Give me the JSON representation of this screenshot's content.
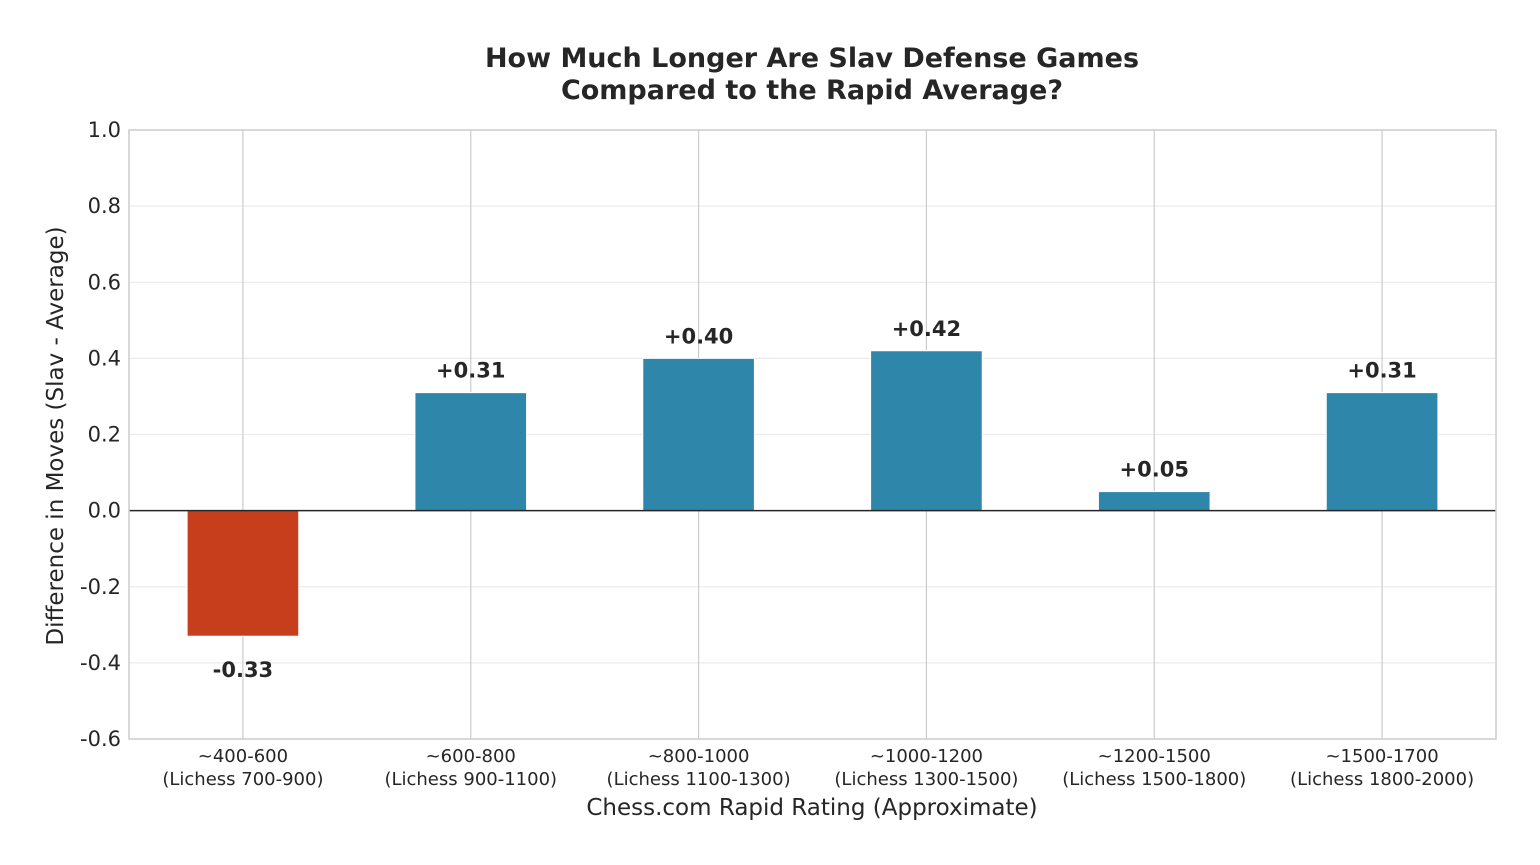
{
  "chart_data": {
    "type": "bar",
    "title_lines": [
      "How Much Longer Are Slav Defense Games",
      "Compared to the Rapid Average?"
    ],
    "xlabel": "Chess.com Rapid Rating (Approximate)",
    "ylabel": "Difference in Moves (Slav - Average)",
    "categories": [
      [
        "~400-600",
        "(Lichess 700-900)"
      ],
      [
        "~600-800",
        "(Lichess 900-1100)"
      ],
      [
        "~800-1000",
        "(Lichess 1100-1300)"
      ],
      [
        "~1000-1200",
        "(Lichess 1300-1500)"
      ],
      [
        "~1200-1500",
        "(Lichess 1500-1800)"
      ],
      [
        "~1500-1700",
        "(Lichess 1800-2000)"
      ]
    ],
    "values": [
      -0.33,
      0.31,
      0.4,
      0.42,
      0.05,
      0.31
    ],
    "value_labels": [
      "-0.33",
      "+0.31",
      "+0.40",
      "+0.42",
      "+0.05",
      "+0.31"
    ],
    "ylim": [
      -0.6,
      1.0
    ],
    "yticks": [
      "-0.6",
      "-0.4",
      "-0.2",
      "0.0",
      "0.2",
      "0.4",
      "0.6",
      "0.8",
      "1.0"
    ],
    "grid": true,
    "zero_line": true,
    "colors": {
      "positive": "#2e86ab",
      "negative": "#c73e1d",
      "grid": "#ebebeb",
      "vgrid": "#cccccc",
      "frame": "#cccccc",
      "zero_line": "#262626",
      "text": "#262626"
    }
  }
}
